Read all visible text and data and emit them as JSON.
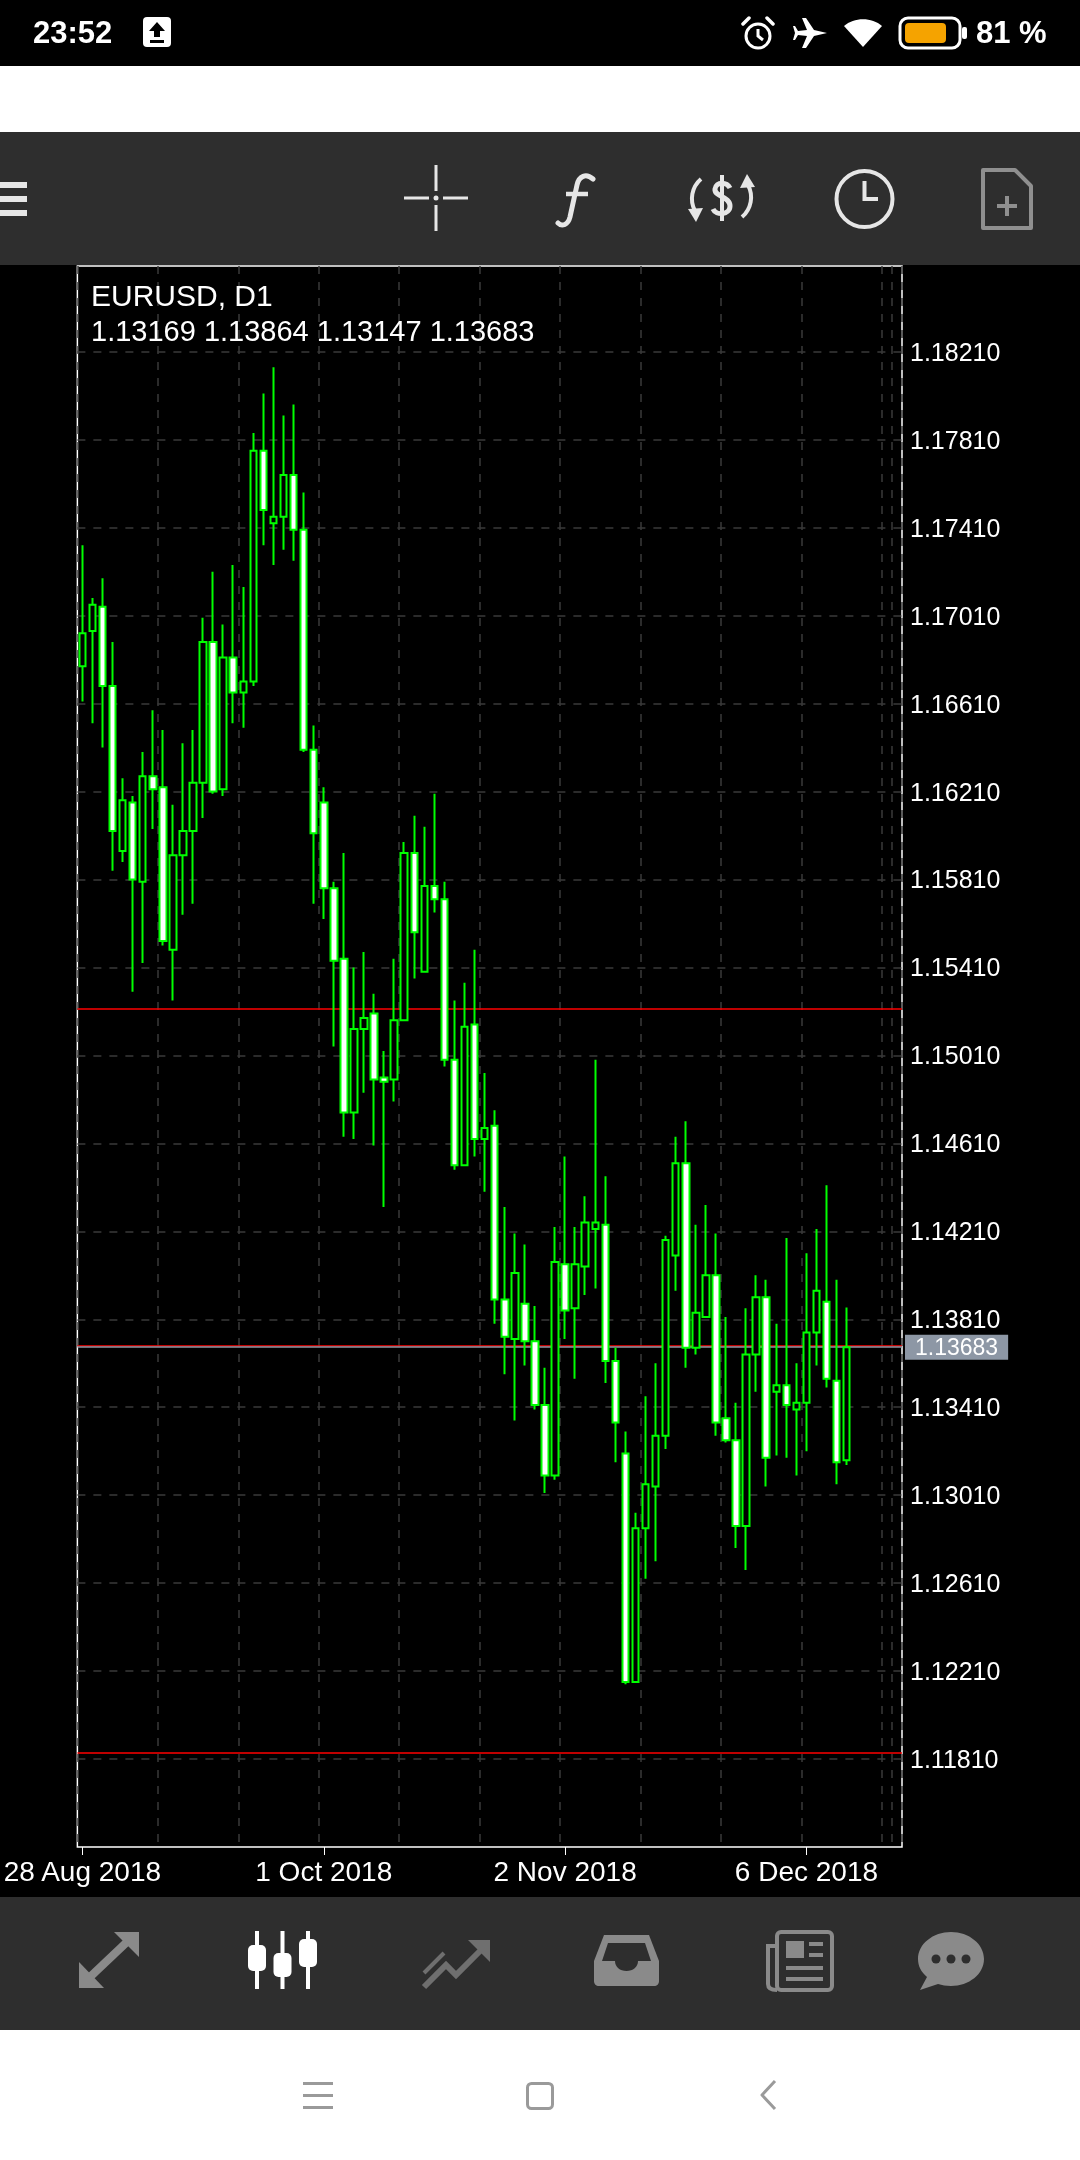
{
  "chart_data": {
    "type": "candlestick",
    "title": "EURUSD, D1",
    "subtitle": "1.13169 1.13864 1.13147 1.13683",
    "annotations": [
      "23:52",
      "81 %"
    ],
    "categories": [
      "28 Aug 2018",
      null,
      null,
      null,
      null,
      null,
      null,
      null,
      null,
      null,
      null,
      null,
      null,
      null,
      null,
      null,
      null,
      null,
      null,
      null,
      null,
      null,
      null,
      null,
      "1 Oct 2018",
      null,
      null,
      null,
      null,
      null,
      null,
      null,
      null,
      null,
      null,
      null,
      null,
      null,
      null,
      null,
      null,
      null,
      null,
      null,
      null,
      null,
      null,
      null,
      "2 Nov 2018",
      null,
      null,
      null,
      null,
      null,
      null,
      null,
      null,
      null,
      null,
      null,
      null,
      null,
      null,
      null,
      null,
      null,
      null,
      null,
      null,
      null,
      null,
      null,
      "6 Dec 2018",
      null,
      null,
      null,
      null
    ],
    "ohlc": [
      [
        1.1678,
        1.1733,
        1.1662,
        1.1693
      ],
      [
        1.1694,
        1.1709,
        1.1652,
        1.1706
      ],
      [
        1.1705,
        1.1718,
        1.1641,
        1.1669
      ],
      [
        1.1669,
        1.1689,
        1.1585,
        1.1603
      ],
      [
        1.1594,
        1.1627,
        1.1589,
        1.1617
      ],
      [
        1.1616,
        1.1619,
        1.153,
        1.1581
      ],
      [
        1.158,
        1.1639,
        1.1543,
        1.1628
      ],
      [
        1.1628,
        1.1658,
        1.1604,
        1.1622
      ],
      [
        1.1623,
        1.1649,
        1.1551,
        1.1553
      ],
      [
        1.1549,
        1.1615,
        1.1526,
        1.1592
      ],
      [
        1.1592,
        1.1643,
        1.1565,
        1.1603
      ],
      [
        1.1603,
        1.1649,
        1.157,
        1.1625
      ],
      [
        1.1625,
        1.17,
        1.1609,
        1.1689
      ],
      [
        1.1689,
        1.1721,
        1.162,
        1.1621
      ],
      [
        1.1622,
        1.1697,
        1.1619,
        1.1682
      ],
      [
        1.1682,
        1.1724,
        1.1652,
        1.1666
      ],
      [
        1.1666,
        1.1714,
        1.165,
        1.1671
      ],
      [
        1.1671,
        1.1784,
        1.1669,
        1.1776
      ],
      [
        1.1776,
        1.1802,
        1.1733,
        1.1749
      ],
      [
        1.1743,
        1.1814,
        1.1724,
        1.1746
      ],
      [
        1.1746,
        1.1792,
        1.1731,
        1.1765
      ],
      [
        1.1765,
        1.1797,
        1.1726,
        1.174
      ],
      [
        1.174,
        1.1757,
        1.1639,
        1.164
      ],
      [
        1.164,
        1.1651,
        1.157,
        1.1602
      ],
      [
        1.1616,
        1.1623,
        1.1563,
        1.1577
      ],
      [
        1.1577,
        1.158,
        1.1505,
        1.1544
      ],
      [
        1.1545,
        1.1593,
        1.1464,
        1.1475
      ],
      [
        1.1475,
        1.1541,
        1.1463,
        1.1513
      ],
      [
        1.1513,
        1.1548,
        1.1484,
        1.1518
      ],
      [
        1.152,
        1.1529,
        1.146,
        1.149
      ],
      [
        1.1491,
        1.1503,
        1.1432,
        1.1489
      ],
      [
        1.149,
        1.1545,
        1.148,
        1.1517
      ],
      [
        1.1517,
        1.1598,
        1.1517,
        1.1593
      ],
      [
        1.1593,
        1.161,
        1.1536,
        1.1557
      ],
      [
        1.1539,
        1.1605,
        1.1539,
        1.1578
      ],
      [
        1.1578,
        1.162,
        1.1566,
        1.1572
      ],
      [
        1.1572,
        1.158,
        1.1496,
        1.1499
      ],
      [
        1.1499,
        1.1526,
        1.1449,
        1.1451
      ],
      [
        1.1451,
        1.1534,
        1.1451,
        1.1514
      ],
      [
        1.1515,
        1.1549,
        1.1455,
        1.1463
      ],
      [
        1.1463,
        1.1493,
        1.1439,
        1.1468
      ],
      [
        1.1469,
        1.1476,
        1.1379,
        1.139
      ],
      [
        1.139,
        1.1432,
        1.1356,
        1.1373
      ],
      [
        1.1372,
        1.142,
        1.1335,
        1.1402
      ],
      [
        1.1388,
        1.1415,
        1.136,
        1.1371
      ],
      [
        1.1371,
        1.1387,
        1.134,
        1.1342
      ],
      [
        1.1342,
        1.1359,
        1.1302,
        1.131
      ],
      [
        1.131,
        1.1423,
        1.1308,
        1.1407
      ],
      [
        1.1406,
        1.1455,
        1.1372,
        1.1385
      ],
      [
        1.1386,
        1.1423,
        1.1354,
        1.1406
      ],
      [
        1.1405,
        1.1437,
        1.1392,
        1.1425
      ],
      [
        1.1422,
        1.1499,
        1.1395,
        1.1425
      ],
      [
        1.1424,
        1.1446,
        1.1352,
        1.1362
      ],
      [
        1.1362,
        1.1368,
        1.1316,
        1.1334
      ],
      [
        1.132,
        1.133,
        1.1215,
        1.1216
      ],
      [
        1.1216,
        1.1293,
        1.1216,
        1.1286
      ],
      [
        1.1286,
        1.1346,
        1.1263,
        1.1306
      ],
      [
        1.1305,
        1.1361,
        1.1271,
        1.1328
      ],
      [
        1.1328,
        1.1419,
        1.1322,
        1.1417
      ],
      [
        1.141,
        1.1464,
        1.1394,
        1.1452
      ],
      [
        1.1452,
        1.1471,
        1.1359,
        1.1368
      ],
      [
        1.1368,
        1.1424,
        1.1365,
        1.1384
      ],
      [
        1.1382,
        1.1433,
        1.1382,
        1.1401
      ],
      [
        1.1401,
        1.142,
        1.1328,
        1.1334
      ],
      [
        1.1336,
        1.1382,
        1.1325,
        1.1326
      ],
      [
        1.1326,
        1.1343,
        1.1277,
        1.1287
      ],
      [
        1.1287,
        1.1386,
        1.1267,
        1.1365
      ],
      [
        1.1365,
        1.1401,
        1.1348,
        1.1391
      ],
      [
        1.1391,
        1.1399,
        1.1305,
        1.1318
      ],
      [
        1.1348,
        1.1379,
        1.1319,
        1.1351
      ],
      [
        1.1351,
        1.1418,
        1.1318,
        1.1342
      ],
      [
        1.134,
        1.1361,
        1.131,
        1.1343
      ],
      [
        1.1343,
        1.1411,
        1.1321,
        1.1375
      ],
      [
        1.1375,
        1.1422,
        1.136,
        1.1394
      ],
      [
        1.1389,
        1.1442,
        1.135,
        1.1354
      ],
      [
        1.1353,
        1.1399,
        1.1306,
        1.1316
      ],
      [
        1.13169,
        1.13864,
        1.13147,
        1.13683
      ]
    ],
    "color": "#00ff00",
    "ylim": [
      1.1141,
      1.186
    ],
    "yticks": [
      {
        "value": 1.1181,
        "label": "1.11810"
      },
      {
        "value": 1.1221,
        "label": "1.12210"
      },
      {
        "value": 1.1261,
        "label": "1.12610"
      },
      {
        "value": 1.1301,
        "label": "1.13010"
      },
      {
        "value": 1.1341,
        "label": "1.13410"
      },
      {
        "value": 1.1381,
        "label": "1.13810"
      },
      {
        "value": 1.1421,
        "label": "1.14210"
      },
      {
        "value": 1.1461,
        "label": "1.14610"
      },
      {
        "value": 1.1501,
        "label": "1.15010"
      },
      {
        "value": 1.1541,
        "label": "1.15410"
      },
      {
        "value": 1.1581,
        "label": "1.15810"
      },
      {
        "value": 1.1621,
        "label": "1.16210"
      },
      {
        "value": 1.1661,
        "label": "1.16610"
      },
      {
        "value": 1.1701,
        "label": "1.17010"
      },
      {
        "value": 1.1741,
        "label": "1.17410"
      },
      {
        "value": 1.1781,
        "label": "1.17810"
      },
      {
        "value": 1.1821,
        "label": "1.18210"
      }
    ],
    "grid": true,
    "ref_lines": [
      {
        "axis": "y",
        "value": 1.1522,
        "color": "#ff0000"
      },
      {
        "axis": "y",
        "value": 1.1184,
        "color": "#ff0000"
      },
      {
        "axis": "y",
        "value": 1.1369,
        "color": "#ff0000"
      },
      {
        "axis": "y",
        "value": 1.13683,
        "label": "1.13683",
        "color": "#8d97a5"
      }
    ]
  }
}
